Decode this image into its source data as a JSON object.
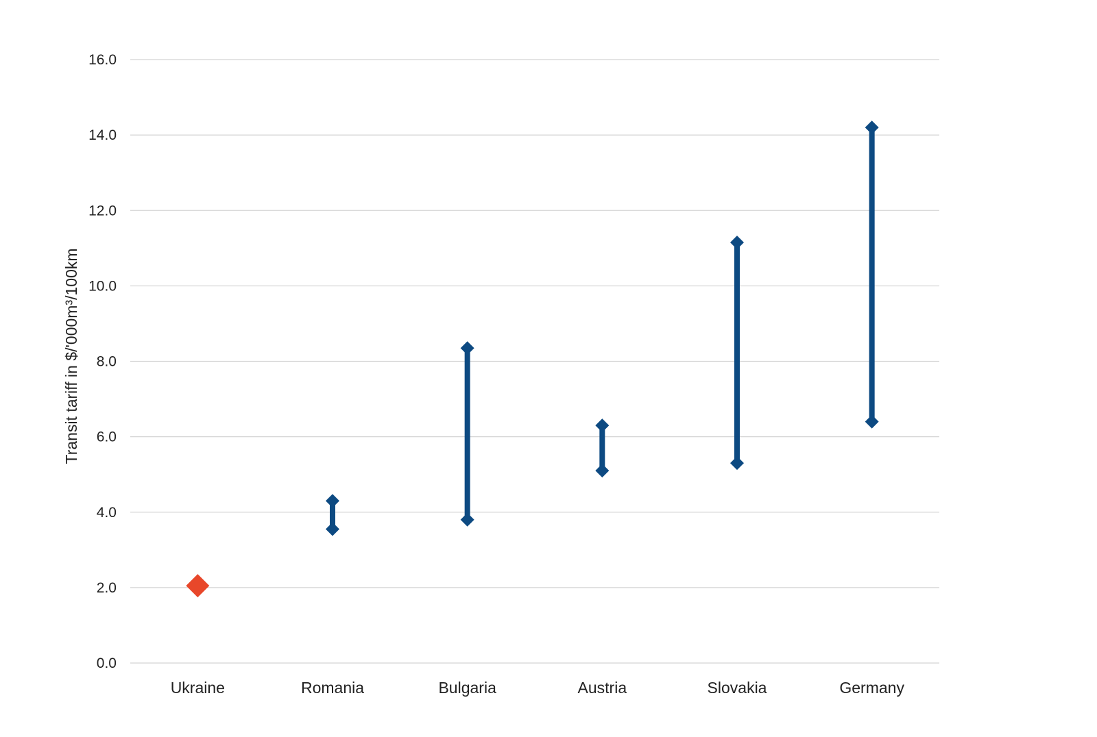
{
  "chart_data": {
    "type": "range",
    "title": "",
    "xlabel": "",
    "ylabel": "Transit tariff in $/'000m³/100km",
    "ylim": [
      0,
      16
    ],
    "yticks": [
      "0.0",
      "2.0",
      "4.0",
      "6.0",
      "8.0",
      "10.0",
      "12.0",
      "14.0",
      "16.0"
    ],
    "ytick_values": [
      0,
      2,
      4,
      6,
      8,
      10,
      12,
      14,
      16
    ],
    "grid": true,
    "legend": "none",
    "categories": [
      "Ukraine",
      "Romania",
      "Bulgaria",
      "Austria",
      "Slovakia",
      "Germany"
    ],
    "series": [
      {
        "low": [
          2.05,
          3.55,
          3.8,
          5.1,
          5.3,
          6.4
        ],
        "high": [
          2.05,
          4.3,
          8.35,
          6.3,
          11.15,
          14.2
        ]
      }
    ],
    "colors": {
      "point_single": "#e8472a",
      "range": "#0d4a82",
      "grid": "#d4d4d4"
    }
  }
}
